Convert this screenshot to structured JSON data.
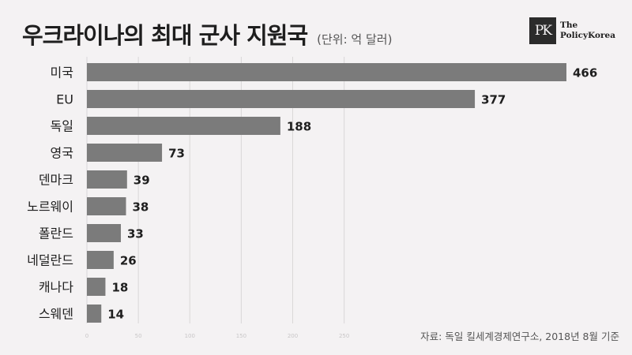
{
  "header": {
    "title": "우크라이나의 최대 군사 지원국",
    "subtitle": "(단위: 억 달러)"
  },
  "logo": {
    "mark": "PK",
    "line1": "The",
    "line2": "PolicyKorea"
  },
  "source": "자료: 독일 킬세계경제연구소, 2018년 8월 기준",
  "colors": {
    "bar": "#7b7b7b",
    "grid": "#d9d7d8",
    "label": "#1e1e1e"
  },
  "chart_data": {
    "type": "bar",
    "orientation": "horizontal",
    "title": "우크라이나의 최대 군사 지원국",
    "subtitle": "(단위: 억 달러)",
    "categories": [
      "미국",
      "EU",
      "독일",
      "영국",
      "덴마크",
      "노르웨이",
      "폴란드",
      "네덜란드",
      "캐나다",
      "스웨덴"
    ],
    "values": [
      466,
      377,
      188,
      73,
      39,
      38,
      33,
      26,
      18,
      14
    ],
    "xlim": [
      0,
      466
    ],
    "x_ticks": [
      0,
      50,
      100,
      150,
      200,
      250
    ],
    "grid": true
  }
}
